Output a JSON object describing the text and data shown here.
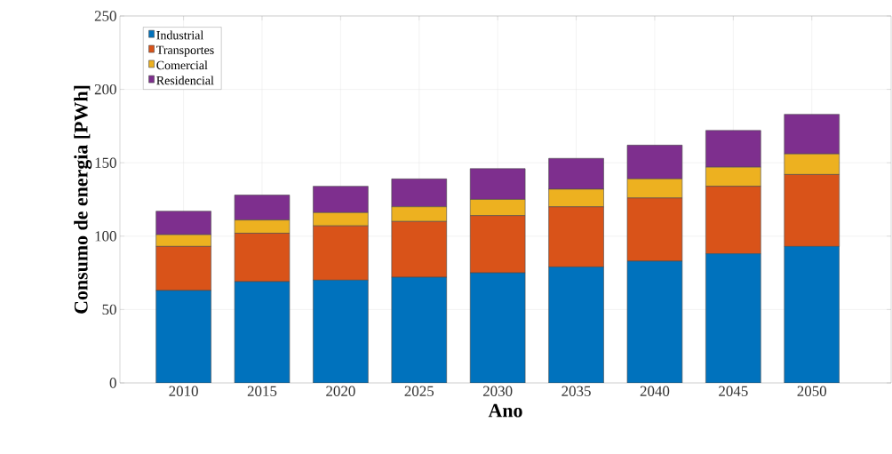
{
  "chart_data": {
    "type": "bar",
    "stacked": true,
    "xlabel": "Ano",
    "ylabel": "Consumo de energia [PWh]",
    "categories": [
      "2010",
      "2015",
      "2020",
      "2025",
      "2030",
      "2035",
      "2040",
      "2045",
      "2050"
    ],
    "ylim": [
      0,
      250
    ],
    "yticks": [
      0,
      50,
      100,
      150,
      200,
      250
    ],
    "grid": true,
    "legend": "top left",
    "series": [
      {
        "name": "Industrial",
        "color": "#0072bd",
        "values": [
          63,
          69,
          70,
          72,
          75,
          79,
          83,
          88,
          93
        ]
      },
      {
        "name": "Transportes",
        "color": "#d95319",
        "values": [
          30,
          33,
          37,
          38,
          39,
          41,
          43,
          46,
          49
        ]
      },
      {
        "name": "Comercial",
        "color": "#edb120",
        "values": [
          8,
          9,
          9,
          10,
          11,
          12,
          13,
          13,
          14
        ]
      },
      {
        "name": "Residencial",
        "color": "#7e2f8e",
        "values": [
          16,
          17,
          18,
          19,
          21,
          21,
          23,
          25,
          27
        ]
      }
    ]
  }
}
